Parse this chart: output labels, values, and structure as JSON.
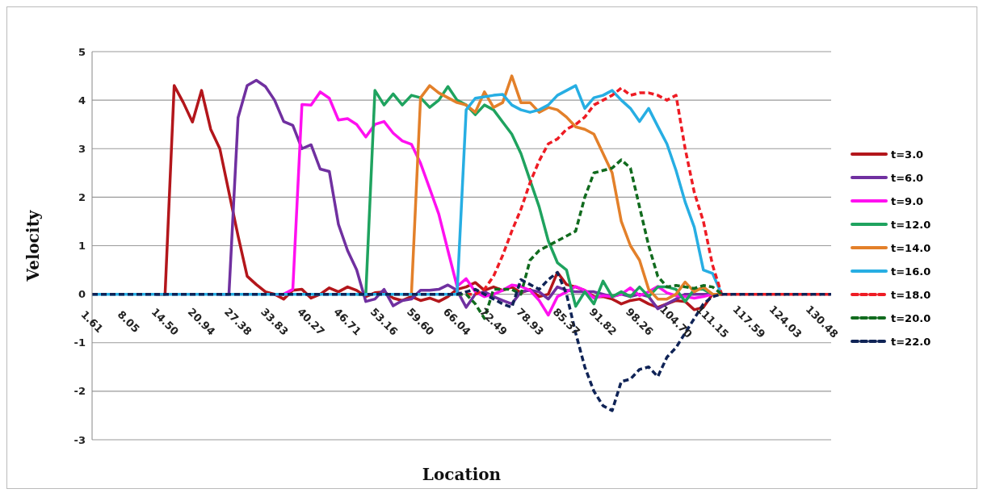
{
  "chart_data": {
    "type": "line",
    "xlabel": "Location",
    "ylabel": "Velocity",
    "categories": [
      "1.61",
      null,
      null,
      null,
      "8.05",
      null,
      null,
      null,
      "14.50",
      null,
      null,
      null,
      "20.94",
      null,
      null,
      null,
      "27.38",
      null,
      null,
      null,
      "33.83",
      null,
      null,
      null,
      "40.27",
      null,
      null,
      null,
      "46.71",
      null,
      null,
      null,
      "53.16",
      null,
      null,
      null,
      "59.60",
      null,
      null,
      null,
      "66.04",
      null,
      null,
      null,
      "72.49",
      null,
      null,
      null,
      "78.93",
      null,
      null,
      null,
      "85.37",
      null,
      null,
      null,
      "91.82",
      null,
      null,
      null,
      "98.26",
      null,
      null,
      null,
      "104.70",
      null,
      null,
      null,
      "111.15",
      null,
      null,
      null,
      "117.59",
      null,
      null,
      null,
      "124.03",
      null,
      null,
      null,
      "130.48",
      null
    ],
    "ylim": [
      -3,
      5
    ],
    "yticks": [
      -3,
      -2,
      -1,
      0,
      1,
      2,
      3,
      4,
      5
    ],
    "grid": "y",
    "legend": "right",
    "marker": "none",
    "series": [
      {
        "name": "t=3.0",
        "color": "#b3161b",
        "line_style": "solid",
        "values": [
          null,
          null,
          null,
          null,
          null,
          null,
          null,
          0,
          0,
          4.3,
          3.95,
          3.55,
          4.2,
          3.4,
          3.0,
          2.1,
          1.2,
          0.37,
          0.2,
          0.05,
          0,
          -0.1,
          0.08,
          0.1,
          -0.08,
          0,
          0.13,
          0.05,
          0.15,
          0.08,
          -0.05,
          0.03,
          0.05,
          -0.08,
          -0.13,
          -0.05,
          -0.13,
          -0.08,
          -0.15,
          -0.05,
          0.1,
          0.15,
          0.24,
          0.08,
          0.15,
          0.08,
          0.15,
          0.03,
          0.1,
          -0.05,
          0,
          0.45,
          0.2,
          0.15,
          0.08,
          -0.05,
          -0.05,
          -0.1,
          -0.2,
          -0.13,
          -0.1,
          -0.2,
          -0.27,
          -0.2,
          -0.13,
          -0.15,
          -0.32,
          -0.27,
          0,
          0,
          null,
          null,
          null,
          null,
          null,
          null,
          null,
          null,
          null,
          null,
          null,
          null
        ]
      },
      {
        "name": "t=6.0",
        "color": "#7030a0",
        "line_style": "solid",
        "values": [
          null,
          null,
          null,
          null,
          null,
          null,
          null,
          null,
          null,
          null,
          null,
          null,
          null,
          null,
          0,
          0,
          3.64,
          4.3,
          4.41,
          4.28,
          4.0,
          3.56,
          3.48,
          3.0,
          3.08,
          2.58,
          2.53,
          1.44,
          0.9,
          0.5,
          -0.15,
          -0.1,
          0.1,
          -0.24,
          -0.13,
          -0.1,
          0.08,
          0.08,
          0.1,
          0.19,
          0.08,
          -0.27,
          0,
          0.05,
          -0.05,
          -0.13,
          -0.2,
          0.05,
          0.08,
          0.05,
          -0.1,
          0.15,
          0.08,
          0.05,
          0.05,
          0.05,
          0,
          -0.05,
          0,
          -0.05,
          0,
          -0.05,
          -0.3,
          -0.2,
          -0.1,
          0,
          0,
          0,
          0,
          null,
          null,
          null,
          null,
          null,
          null,
          null,
          null,
          null,
          null,
          null,
          null,
          null
        ]
      },
      {
        "name": "t=9.0",
        "color": "#ff10f0",
        "line_style": "solid",
        "values": [
          null,
          null,
          null,
          null,
          null,
          null,
          null,
          null,
          null,
          null,
          null,
          null,
          null,
          null,
          null,
          null,
          null,
          null,
          null,
          null,
          0,
          0,
          0.1,
          3.91,
          3.9,
          4.17,
          4.04,
          3.59,
          3.62,
          3.5,
          3.24,
          3.5,
          3.56,
          3.32,
          3.16,
          3.09,
          2.7,
          2.18,
          1.65,
          0.9,
          0.16,
          0.32,
          0.05,
          -0.05,
          0,
          0.08,
          0.19,
          0.16,
          0.08,
          -0.13,
          -0.43,
          -0.05,
          0.05,
          0.16,
          0.08,
          -0.08,
          -0.03,
          -0.05,
          0,
          0.13,
          -0.03,
          0.05,
          0.16,
          0.03,
          -0.03,
          -0.05,
          -0.08,
          -0.05,
          0,
          0,
          null,
          null,
          null,
          null,
          null,
          null,
          null,
          null,
          null,
          null,
          null,
          null
        ]
      },
      {
        "name": "t=12.0",
        "color": "#1fa35f",
        "line_style": "solid",
        "values": [
          null,
          null,
          null,
          null,
          null,
          null,
          null,
          null,
          null,
          null,
          null,
          null,
          null,
          null,
          null,
          null,
          null,
          null,
          null,
          null,
          null,
          null,
          null,
          null,
          null,
          null,
          null,
          null,
          null,
          0,
          0,
          4.2,
          3.9,
          4.13,
          3.9,
          4.1,
          4.05,
          3.85,
          4.0,
          4.28,
          4.0,
          3.9,
          3.7,
          3.9,
          3.8,
          3.55,
          3.3,
          2.9,
          2.35,
          1.8,
          1.1,
          0.65,
          0.5,
          -0.25,
          0.05,
          -0.2,
          0.27,
          -0.05,
          0.05,
          -0.05,
          0.15,
          -0.05,
          0.15,
          0.15,
          0.1,
          -0.15,
          0.1,
          0.1,
          0,
          0,
          null,
          null,
          null,
          null,
          null,
          null,
          null,
          null,
          null,
          null,
          null,
          null
        ]
      },
      {
        "name": "t=14.0",
        "color": "#e3802a",
        "line_style": "solid",
        "values": [
          null,
          null,
          null,
          null,
          null,
          null,
          null,
          null,
          null,
          null,
          null,
          null,
          null,
          null,
          null,
          null,
          null,
          null,
          null,
          null,
          null,
          null,
          null,
          null,
          null,
          null,
          null,
          null,
          null,
          null,
          null,
          null,
          null,
          null,
          0,
          0,
          4.05,
          4.3,
          4.15,
          4.05,
          3.95,
          3.9,
          3.75,
          4.17,
          3.85,
          3.95,
          4.5,
          3.95,
          3.95,
          3.75,
          3.85,
          3.8,
          3.65,
          3.45,
          3.4,
          3.3,
          2.9,
          2.5,
          1.5,
          1.0,
          0.7,
          0.1,
          -0.1,
          -0.1,
          0,
          0.25,
          0.05,
          0.15,
          0,
          0,
          null,
          null,
          null,
          null,
          null,
          null,
          null,
          null,
          null,
          null,
          null,
          null
        ]
      },
      {
        "name": "t=16.0",
        "color": "#27aee3",
        "line_style": "solid",
        "values": [
          0,
          0,
          0,
          0,
          0,
          0,
          0,
          0,
          0,
          0,
          0,
          0,
          0,
          0,
          0,
          0,
          0,
          0,
          0,
          0,
          0,
          0,
          0,
          0,
          0,
          0,
          0,
          0,
          0,
          0,
          0,
          0,
          0,
          0,
          0,
          0,
          0,
          0,
          0,
          0,
          0,
          3.8,
          4.04,
          4.07,
          4.1,
          4.12,
          3.9,
          3.8,
          3.75,
          3.8,
          3.9,
          4.1,
          4.2,
          4.3,
          3.83,
          4.05,
          4.1,
          4.2,
          4.0,
          3.83,
          3.56,
          3.83,
          3.46,
          3.1,
          2.55,
          1.9,
          1.38,
          0.5,
          0.43,
          0,
          null,
          null,
          null,
          null,
          null,
          null,
          null,
          null,
          null,
          null,
          null,
          null
        ]
      },
      {
        "name": "t=18.0",
        "color": "#ee1c24",
        "line_style": "dashed",
        "values": [
          null,
          null,
          null,
          null,
          null,
          null,
          null,
          null,
          null,
          null,
          null,
          null,
          null,
          null,
          null,
          null,
          null,
          null,
          null,
          null,
          null,
          null,
          null,
          null,
          null,
          null,
          null,
          null,
          null,
          null,
          null,
          null,
          null,
          null,
          null,
          null,
          null,
          null,
          null,
          null,
          null,
          0,
          0,
          0.1,
          0.37,
          0.8,
          1.3,
          1.75,
          2.3,
          2.75,
          3.1,
          3.2,
          3.4,
          3.5,
          3.65,
          3.9,
          4.0,
          4.1,
          4.25,
          4.1,
          4.15,
          4.15,
          4.1,
          4.0,
          4.1,
          3.0,
          2.1,
          1.5,
          0.6,
          0,
          0,
          0,
          0,
          0,
          0,
          0,
          0,
          0,
          0,
          0,
          0,
          0
        ]
      },
      {
        "name": "t=20.0",
        "color": "#116b1e",
        "line_style": "dashed",
        "values": [
          null,
          null,
          null,
          null,
          null,
          null,
          null,
          null,
          null,
          null,
          null,
          null,
          null,
          null,
          null,
          null,
          null,
          null,
          null,
          null,
          null,
          null,
          null,
          null,
          null,
          null,
          null,
          null,
          null,
          null,
          null,
          null,
          null,
          null,
          null,
          null,
          null,
          null,
          null,
          null,
          0,
          0,
          -0.2,
          -0.5,
          0.1,
          0.1,
          0.1,
          0,
          0.7,
          0.9,
          1.0,
          1.1,
          1.2,
          1.3,
          2.0,
          2.5,
          2.55,
          2.6,
          2.77,
          2.6,
          1.8,
          1.0,
          0.37,
          0.15,
          0.18,
          0.15,
          0.12,
          0.18,
          0.15,
          0,
          null,
          null,
          null,
          null,
          null,
          null,
          null,
          null,
          null,
          null,
          null,
          null
        ]
      },
      {
        "name": "t=22.0",
        "color": "#0f2356",
        "line_style": "dashed",
        "values": [
          0,
          0,
          0,
          0,
          0,
          0,
          0,
          0,
          0,
          0,
          0,
          0,
          0,
          0,
          0,
          0,
          0,
          0,
          0,
          0,
          0,
          0,
          0,
          0,
          0,
          0,
          0,
          0,
          0,
          0,
          0,
          0,
          0,
          0,
          0,
          0,
          0,
          0,
          0,
          0,
          0,
          0.05,
          0.1,
          0,
          -0.1,
          -0.2,
          -0.27,
          0.3,
          0.2,
          0.1,
          0.3,
          0.45,
          0,
          -0.8,
          -1.5,
          -2.0,
          -2.3,
          -2.4,
          -1.8,
          -1.75,
          -1.55,
          -1.5,
          -1.7,
          -1.3,
          -1.1,
          -0.8,
          -0.5,
          -0.2,
          -0.05,
          0,
          0,
          0,
          0,
          0,
          0,
          0,
          0,
          0,
          0,
          0,
          0,
          0
        ]
      }
    ]
  }
}
